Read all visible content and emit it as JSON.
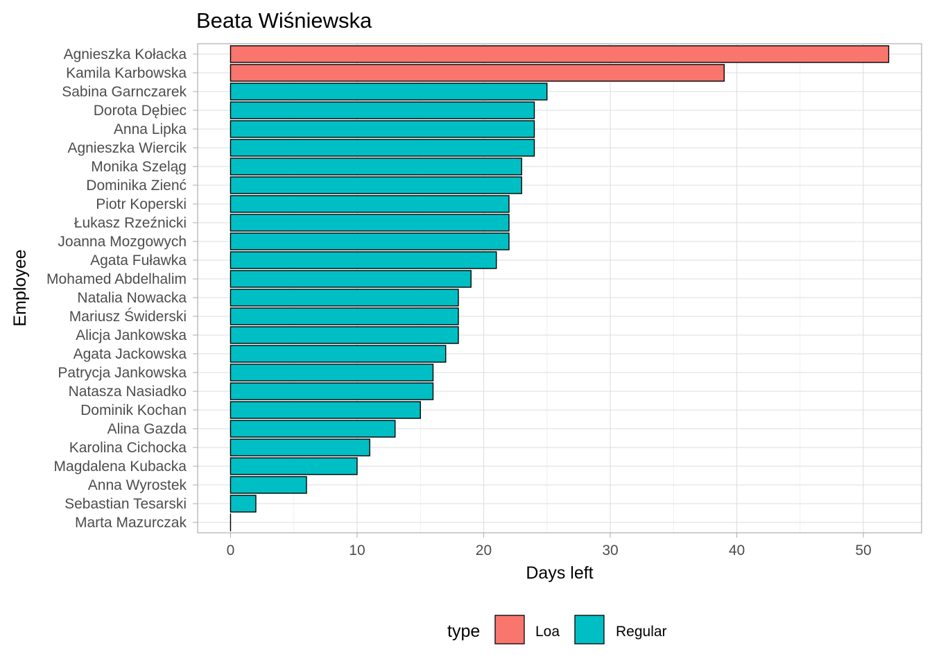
{
  "chart_data": {
    "type": "bar",
    "orientation": "horizontal",
    "title": "Beata Wiśniewska",
    "xlabel": "Days left",
    "ylabel": "Employee",
    "xlim": [
      -2.6,
      54.6
    ],
    "x_ticks": [
      0,
      10,
      20,
      30,
      40,
      50
    ],
    "grid": true,
    "legend": {
      "title": "type",
      "placement": "bottom",
      "entries": [
        {
          "name": "Loa",
          "color": "#F8766D"
        },
        {
          "name": "Regular",
          "color": "#00BFC4"
        }
      ]
    },
    "categories": [
      "Agnieszka Kołacka",
      "Kamila Karbowska",
      "Sabina Garnczarek",
      "Dorota Dębiec",
      "Anna Lipka",
      "Agnieszka Wiercik",
      "Monika Szeląg",
      "Dominika Zienć",
      "Piotr Koperski",
      "Łukasz Rzeźnicki",
      "Joanna Mozgowych",
      "Agata Fuławka",
      "Mohamed  Abdelhalim",
      "Natalia Nowacka",
      "Mariusz Świderski",
      "Alicja Jankowska",
      "Agata Jackowska",
      "Patrycja Jankowska",
      "Natasza Nasiadko",
      "Dominik Kochan",
      "Alina Gazda",
      "Karolina Cichocka",
      "Magdalena Kubacka",
      "Anna Wyrostek",
      "Sebastian Tesarski",
      "Marta Mazurczak"
    ],
    "values": [
      52,
      39,
      25,
      24,
      24,
      24,
      23,
      23,
      22,
      22,
      22,
      21,
      19,
      18,
      18,
      18,
      17,
      16,
      16,
      15,
      13,
      11,
      10,
      6,
      2,
      0
    ],
    "types": [
      "Loa",
      "Loa",
      "Regular",
      "Regular",
      "Regular",
      "Regular",
      "Regular",
      "Regular",
      "Regular",
      "Regular",
      "Regular",
      "Regular",
      "Regular",
      "Regular",
      "Regular",
      "Regular",
      "Regular",
      "Regular",
      "Regular",
      "Regular",
      "Regular",
      "Regular",
      "Regular",
      "Regular",
      "Regular",
      "Regular"
    ]
  }
}
